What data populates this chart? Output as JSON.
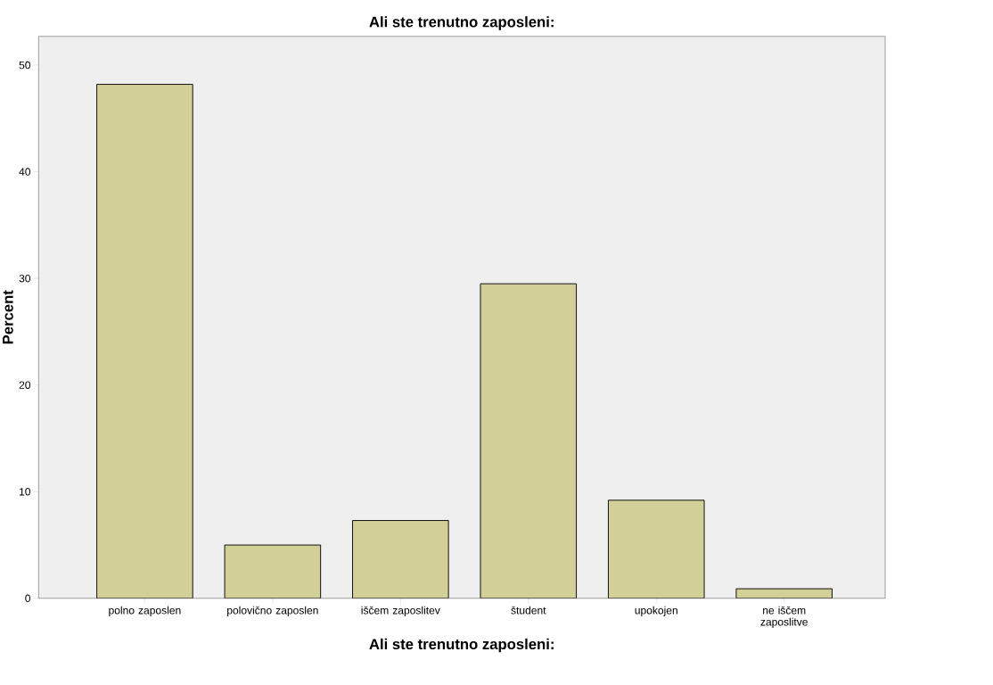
{
  "chart_data": {
    "type": "bar",
    "title": "Ali ste trenutno zaposleni:",
    "xlabel": "Ali ste trenutno zaposleni:",
    "ylabel": "Percent",
    "categories": [
      "polno zaposlen",
      "polovično zaposlen",
      "iščem zaposlitev",
      "študent",
      "upokojen",
      "ne iščem zaposlitve"
    ],
    "values": [
      48.2,
      5.0,
      7.3,
      29.5,
      9.2,
      0.9
    ],
    "color": "#d3cf98",
    "ylim": [
      0,
      52.7
    ],
    "yticks": [
      0,
      10,
      20,
      30,
      40,
      50
    ]
  }
}
